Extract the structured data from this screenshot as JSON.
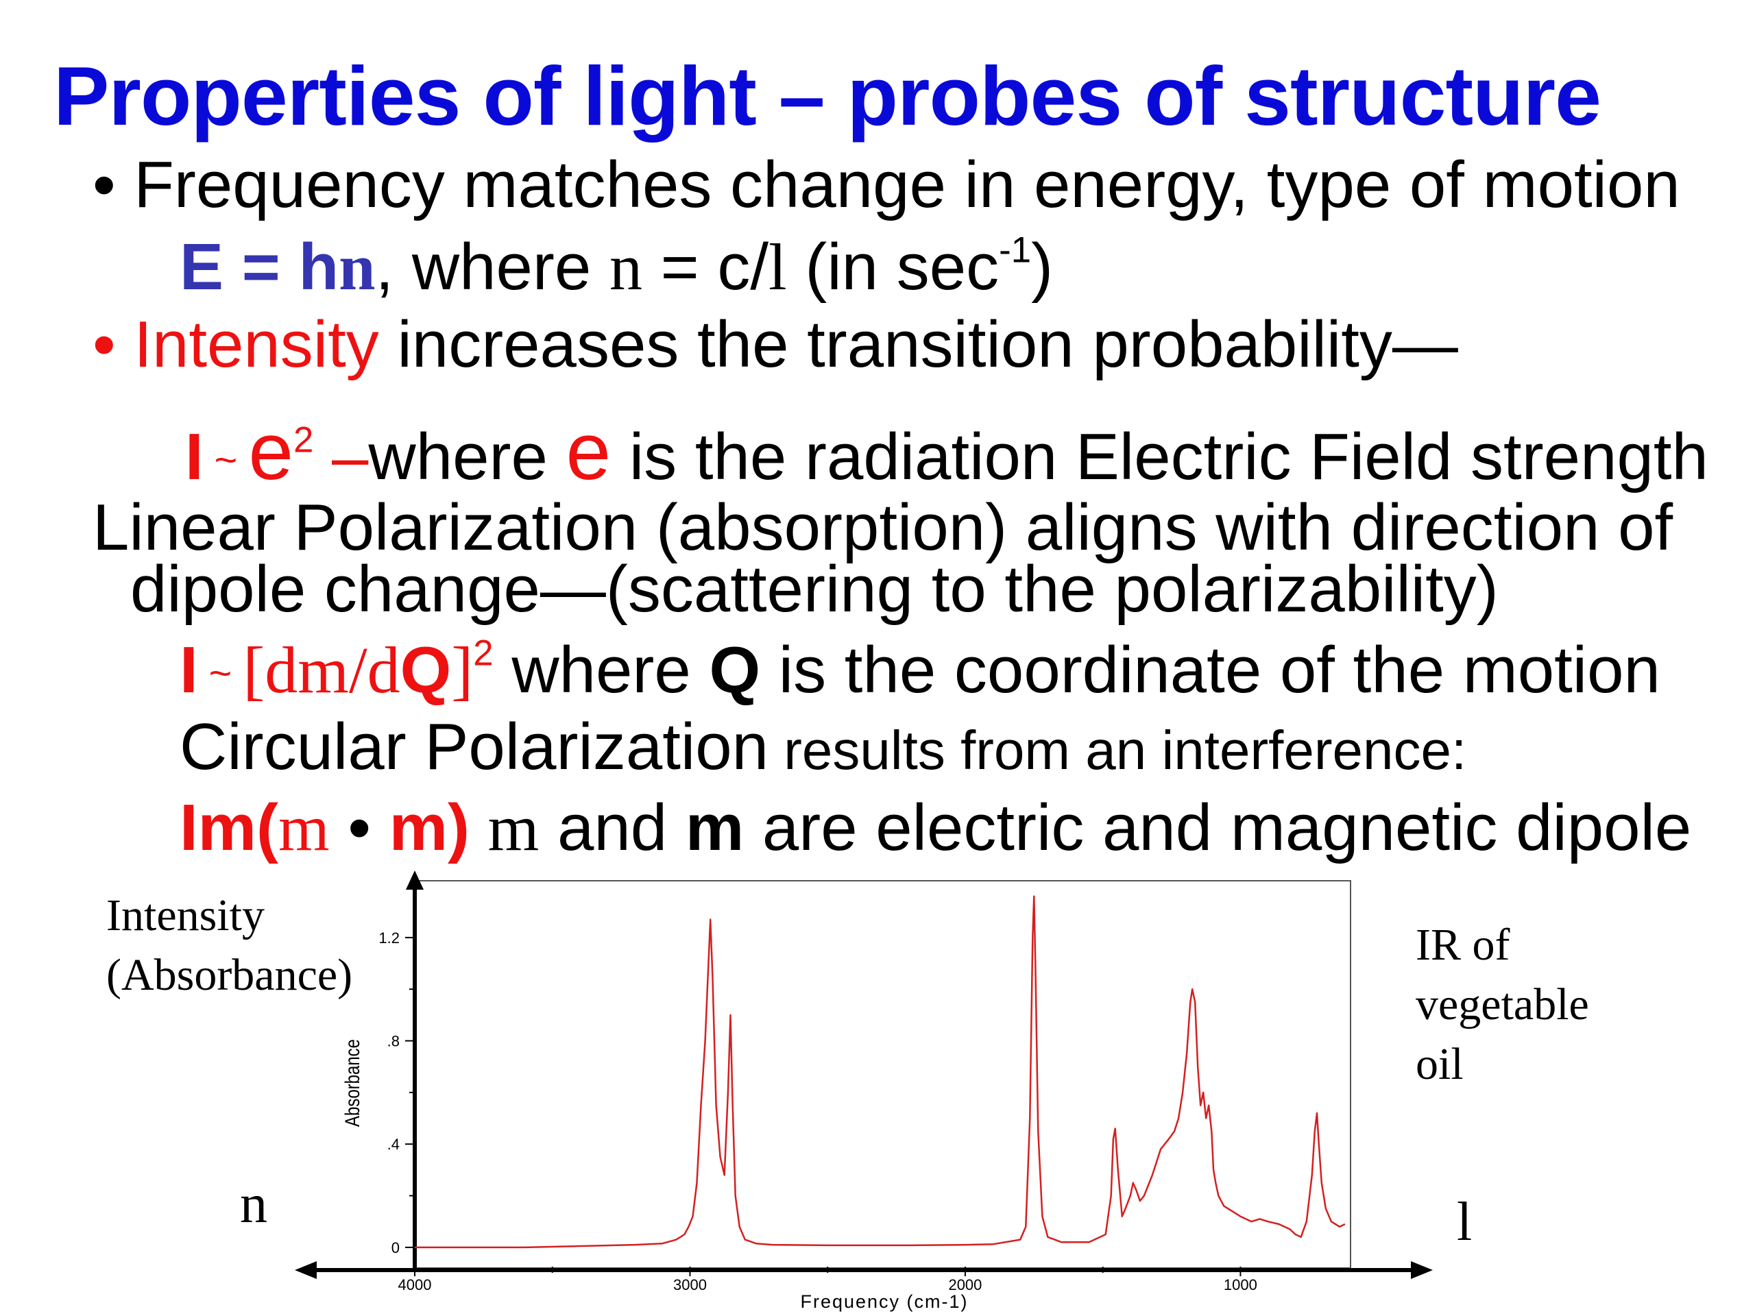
{
  "title": "Properties of light – probes of structure",
  "lines": {
    "l1": {
      "bullet": "•",
      "a": "Frequency",
      "b": " matches change in energy, type of motion"
    },
    "l2": {
      "box": "",
      "a": "E = h",
      "b": "n",
      "c": ",  where  ",
      "d": "n",
      "e": " = c/",
      "f": "l",
      "g": "     (in sec",
      "h": "-1",
      "i": ")"
    },
    "l3": {
      "bullet": "•",
      "a": "Intensity",
      "b": " increases the transition probability—"
    },
    "l4": {
      "box": "",
      "a": "I",
      "b": " ~ ",
      "c": "e",
      "d": "2",
      "e": " –",
      "f": "where ",
      "g": "e",
      "h": " is the radiation Electric Field strength"
    },
    "l5": {
      "a": "Linear Polarization (absorption) aligns with direction of"
    },
    "l6": {
      "a": "dipole change—(scattering to the polarizability)"
    },
    "l7": {
      "box": "",
      "a": "I",
      "b": " ~ ",
      "c": "[dm/d",
      "d": "Q",
      "e": "]",
      "f": "2",
      "g": "  where ",
      "h": "Q",
      "i": " is the coordinate of the motion"
    },
    "l8": {
      "a": "Circular Polarization",
      "b": " results from an interference:"
    },
    "l9": {
      "box": "",
      "a": "Im(",
      "b": "m",
      "c": " • ",
      "d": "m)",
      "e": "  ",
      "f": "m",
      "g": " and ",
      "h": "m",
      "i": " are electric and magnetic dipole"
    }
  },
  "side_labels": {
    "intensity": "Intensity",
    "absorbance_paren": "(Absorbance)",
    "ir_of": "IR of",
    "vegetable": "vegetable",
    "oil": "oil",
    "nu": "n",
    "lambda": "l"
  },
  "chart_data": {
    "type": "line",
    "xlabel": "Frequency (cm-1)",
    "ylabel": "Absorbance",
    "x_reversed": true,
    "xlim": [
      4000,
      600
    ],
    "ylim": [
      -0.08,
      1.42
    ],
    "x_ticks": [
      4000,
      3000,
      2000,
      1000
    ],
    "x_tick_labels": [
      "4000",
      "3000",
      "2000",
      "1000"
    ],
    "y_ticks": [
      0,
      0.4,
      0.8,
      1.2
    ],
    "y_tick_labels": [
      "0",
      ".4",
      ".8",
      "1.2"
    ],
    "line_color": "#d42020",
    "series": [
      {
        "x": [
          4000,
          3800,
          3600,
          3400,
          3200,
          3100,
          3050,
          3020,
          3005,
          2990,
          2975,
          2960,
          2945,
          2935,
          2926,
          2918,
          2905,
          2890,
          2875,
          2862,
          2853,
          2845,
          2835,
          2820,
          2800,
          2760,
          2700,
          2500,
          2200,
          2000,
          1900,
          1800,
          1780,
          1765,
          1755,
          1750,
          1745,
          1735,
          1720,
          1700,
          1650,
          1550,
          1490,
          1470,
          1462,
          1455,
          1445,
          1430,
          1418,
          1400,
          1390,
          1378,
          1365,
          1350,
          1320,
          1290,
          1260,
          1240,
          1225,
          1210,
          1195,
          1182,
          1175,
          1165,
          1155,
          1145,
          1135,
          1125,
          1115,
          1105,
          1098,
          1090,
          1080,
          1060,
          1030,
          1000,
          960,
          930,
          900,
          860,
          820,
          800,
          780,
          760,
          740,
          730,
          722,
          715,
          705,
          690,
          670,
          640,
          620
        ],
        "y": [
          0.0,
          0.0,
          0.0,
          0.005,
          0.01,
          0.015,
          0.03,
          0.05,
          0.08,
          0.12,
          0.25,
          0.55,
          0.8,
          1.05,
          1.27,
          1.05,
          0.55,
          0.35,
          0.28,
          0.6,
          0.9,
          0.55,
          0.2,
          0.08,
          0.03,
          0.015,
          0.01,
          0.008,
          0.008,
          0.01,
          0.012,
          0.03,
          0.08,
          0.5,
          1.2,
          1.36,
          1.1,
          0.45,
          0.12,
          0.04,
          0.02,
          0.02,
          0.05,
          0.2,
          0.42,
          0.46,
          0.3,
          0.12,
          0.15,
          0.2,
          0.25,
          0.22,
          0.18,
          0.2,
          0.28,
          0.38,
          0.42,
          0.45,
          0.5,
          0.6,
          0.75,
          0.95,
          1.0,
          0.95,
          0.7,
          0.55,
          0.6,
          0.5,
          0.55,
          0.45,
          0.3,
          0.25,
          0.2,
          0.16,
          0.14,
          0.12,
          0.1,
          0.11,
          0.1,
          0.09,
          0.07,
          0.05,
          0.04,
          0.1,
          0.28,
          0.45,
          0.52,
          0.4,
          0.25,
          0.15,
          0.1,
          0.08,
          0.09
        ]
      }
    ]
  }
}
